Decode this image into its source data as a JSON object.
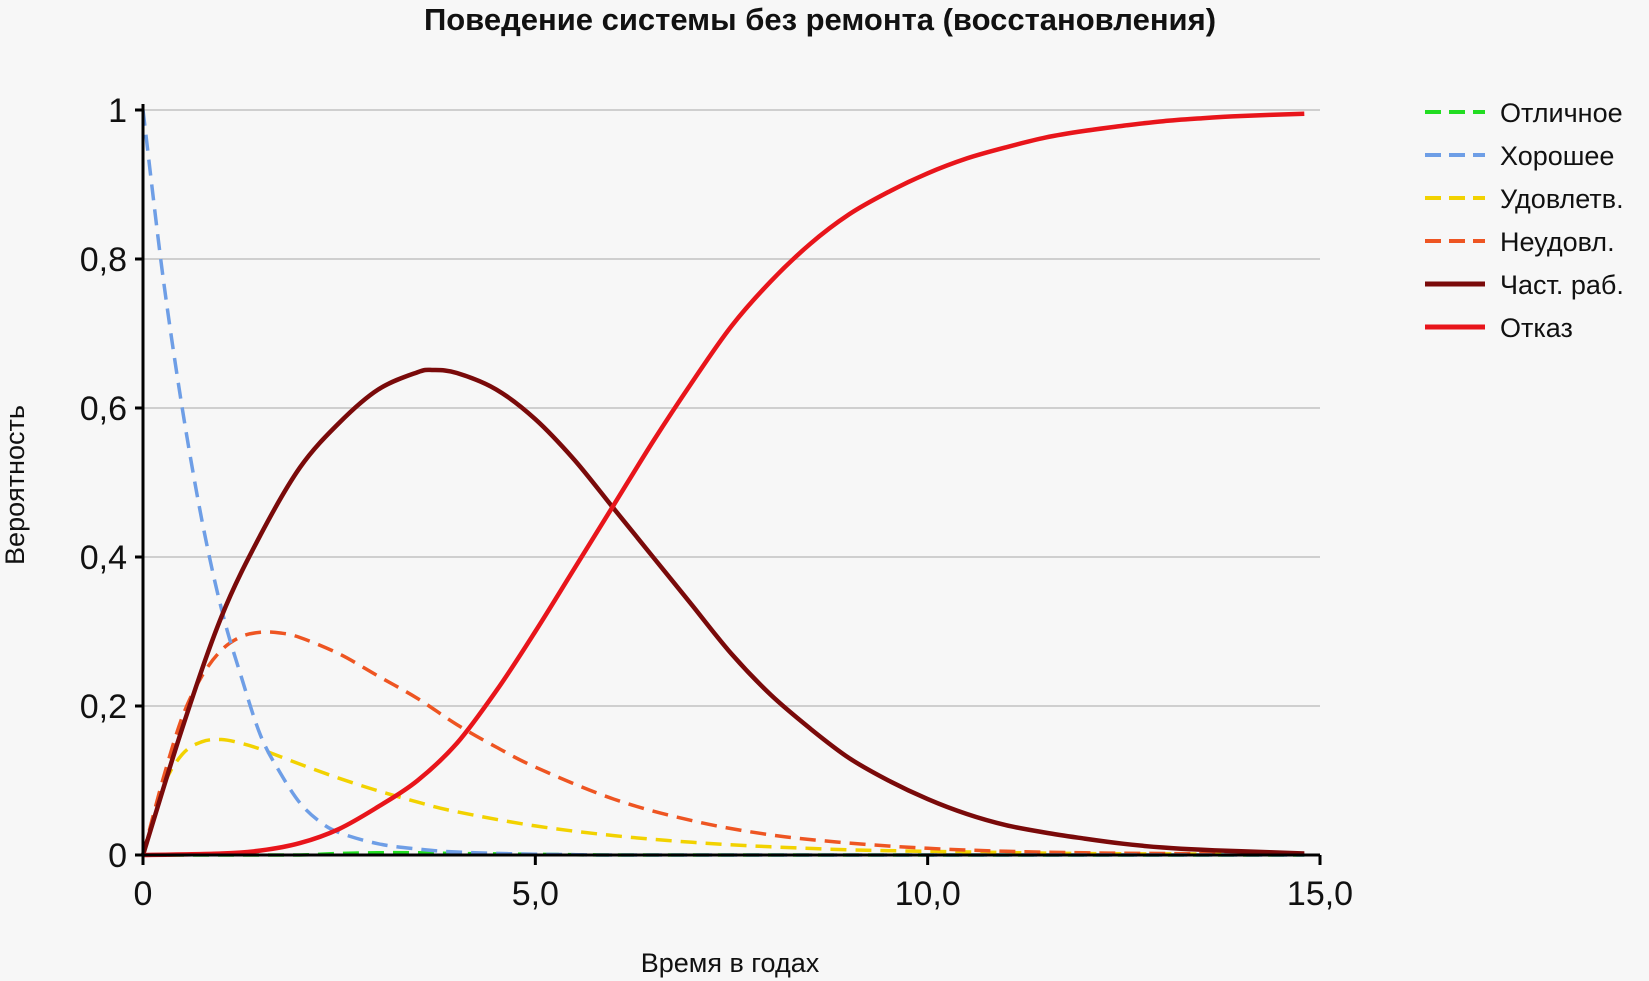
{
  "chart_data": {
    "type": "line",
    "title": "Поведение системы без ремонта (восстановления)",
    "xlabel": "Время в годах",
    "ylabel": "Вероятность",
    "xlim": [
      0,
      15
    ],
    "ylim": [
      0,
      1
    ],
    "x_ticks": [
      0,
      5,
      10,
      15
    ],
    "x_tick_labels": [
      "0",
      "5,0",
      "10,0",
      "15,0"
    ],
    "y_ticks": [
      0,
      0.2,
      0.4,
      0.6,
      0.8,
      1
    ],
    "y_tick_labels": [
      "0",
      "0,2",
      "0,4",
      "0,6",
      "0,8",
      "1"
    ],
    "grid": "horizontal",
    "legend_position": "right",
    "series": [
      {
        "name": "Отличное",
        "color": "#22dd22",
        "dashed": true,
        "x": [
          0,
          0.5,
          1,
          1.5,
          2,
          2.5,
          3,
          3.5,
          4,
          5,
          6,
          8,
          10,
          12,
          14.8
        ],
        "y": [
          0,
          0,
          0,
          0,
          0,
          0.002,
          0.003,
          0.003,
          0.002,
          0.001,
          0,
          0,
          0,
          0,
          0
        ]
      },
      {
        "name": "Хорошее",
        "color": "#6e9ee6",
        "dashed": true,
        "x": [
          0,
          0.25,
          0.5,
          0.75,
          1,
          1.25,
          1.5,
          1.75,
          2,
          2.25,
          2.5,
          3,
          3.5,
          4,
          5,
          6,
          8,
          10,
          12,
          14.8
        ],
        "y": [
          1,
          0.78,
          0.6,
          0.45,
          0.33,
          0.24,
          0.16,
          0.11,
          0.07,
          0.045,
          0.03,
          0.015,
          0.008,
          0.004,
          0.001,
          0,
          0,
          0,
          0,
          0
        ]
      },
      {
        "name": "Удовлетв.",
        "color": "#f2d200",
        "dashed": true,
        "x": [
          0,
          0.25,
          0.5,
          0.75,
          1,
          1.25,
          1.5,
          2,
          2.5,
          3,
          3.5,
          4,
          5,
          6,
          7,
          8,
          9,
          10,
          12,
          14.8
        ],
        "y": [
          0,
          0.09,
          0.135,
          0.152,
          0.155,
          0.15,
          0.142,
          0.122,
          0.103,
          0.086,
          0.071,
          0.058,
          0.039,
          0.026,
          0.017,
          0.011,
          0.007,
          0.005,
          0.002,
          0.001
        ]
      },
      {
        "name": "Неудовл.",
        "color": "#ee5522",
        "dashed": true,
        "x": [
          0,
          0.25,
          0.5,
          0.75,
          1,
          1.25,
          1.5,
          1.75,
          2,
          2.5,
          3,
          3.5,
          4,
          4.5,
          5,
          6,
          7,
          8,
          9,
          10,
          11,
          12,
          13,
          14.8
        ],
        "y": [
          0,
          0.1,
          0.185,
          0.24,
          0.275,
          0.293,
          0.299,
          0.298,
          0.292,
          0.27,
          0.24,
          0.21,
          0.175,
          0.145,
          0.118,
          0.075,
          0.046,
          0.027,
          0.016,
          0.009,
          0.005,
          0.003,
          0.002,
          0.001
        ]
      },
      {
        "name": "Част. раб.",
        "color": "#7a0a0a",
        "dashed": false,
        "x": [
          0,
          0.5,
          1,
          1.5,
          2,
          2.5,
          3,
          3.5,
          3.7,
          4,
          4.5,
          5,
          5.5,
          6,
          6.5,
          7,
          7.5,
          8,
          8.5,
          9,
          9.5,
          10,
          10.5,
          11,
          11.5,
          12,
          12.5,
          13,
          13.5,
          14,
          14.8
        ],
        "y": [
          0,
          0.17,
          0.32,
          0.43,
          0.52,
          0.58,
          0.625,
          0.648,
          0.651,
          0.647,
          0.625,
          0.585,
          0.53,
          0.465,
          0.4,
          0.335,
          0.27,
          0.215,
          0.17,
          0.13,
          0.1,
          0.075,
          0.055,
          0.04,
          0.03,
          0.022,
          0.015,
          0.01,
          0.007,
          0.005,
          0.002
        ]
      },
      {
        "name": "Отказ",
        "color": "#e8151b",
        "dashed": false,
        "x": [
          0,
          1,
          1.5,
          2,
          2.5,
          3,
          3.5,
          4,
          4.5,
          5,
          5.5,
          6,
          6.5,
          7,
          7.5,
          8,
          8.5,
          9,
          9.5,
          10,
          10.5,
          11,
          11.5,
          12,
          12.5,
          13,
          13.5,
          14,
          14.8
        ],
        "y": [
          0,
          0.002,
          0.006,
          0.016,
          0.035,
          0.065,
          0.1,
          0.15,
          0.22,
          0.3,
          0.385,
          0.47,
          0.555,
          0.635,
          0.71,
          0.77,
          0.82,
          0.86,
          0.89,
          0.915,
          0.935,
          0.95,
          0.963,
          0.972,
          0.979,
          0.985,
          0.989,
          0.992,
          0.995
        ]
      }
    ]
  }
}
